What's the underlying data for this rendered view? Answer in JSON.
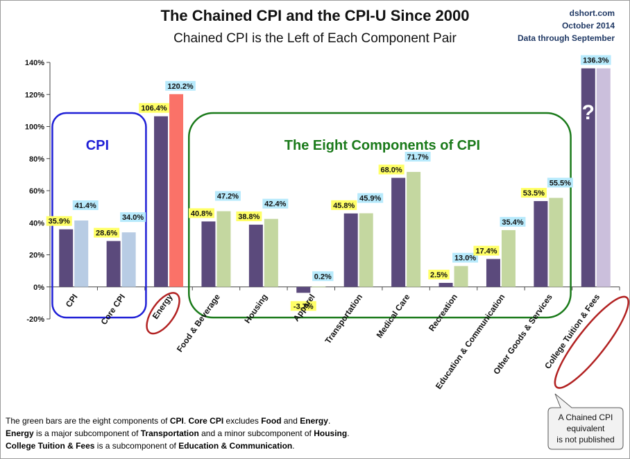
{
  "header": {
    "title": "The Chained CPI and the CPI-U Since 2000",
    "subtitle": "Chained CPI is the Left of Each Component Pair",
    "source_lines": [
      "dshort.com",
      "October 2014",
      "Data through September"
    ]
  },
  "chart_data": {
    "type": "bar",
    "categories": [
      "CPI",
      "Core CPI",
      "Energy",
      "Food & Beverage",
      "Housing",
      "Apparel",
      "Transportation",
      "Medical Care",
      "Recreation",
      "Education & Communication",
      "Other Goods & Services",
      "College Tuition & Fees"
    ],
    "series": [
      {
        "values": [
          35.9,
          28.6,
          106.4,
          40.8,
          38.8,
          -3.7,
          45.8,
          68.0,
          2.5,
          17.4,
          53.5,
          null
        ]
      },
      {
        "values": [
          41.4,
          34.0,
          120.2,
          47.2,
          42.4,
          0.2,
          45.9,
          71.7,
          13.0,
          35.4,
          55.5,
          136.3
        ]
      }
    ],
    "value_labels_left": [
      "35.9%",
      "28.6%",
      "106.4%",
      "40.8%",
      "38.8%",
      "-3.7%",
      "45.8%",
      "68.0%",
      "2.5%",
      "17.4%",
      "53.5%",
      ""
    ],
    "value_labels_right": [
      "41.4%",
      "34.0%",
      "120.2%",
      "47.2%",
      "42.4%",
      "0.2%",
      "45.9%",
      "71.7%",
      "13.0%",
      "35.4%",
      "55.5%",
      "136.3%"
    ],
    "ylim": [
      -20,
      140
    ],
    "yticks": [
      -20,
      0,
      20,
      40,
      60,
      80,
      100,
      120,
      140
    ],
    "ytick_labels": [
      "-20%",
      "0%",
      "20%",
      "40%",
      "60%",
      "80%",
      "100%",
      "120%",
      "140%"
    ],
    "grid": false,
    "colors": {
      "chained_cpi": "#5b4a7c",
      "cpi_u_cpi": "#b8cce4",
      "cpi_u_energy": "#fa7268",
      "cpi_u_components": "#c4d7a0",
      "cpi_u_tuition": "#cbbfdc",
      "label_yellow": "#ffff66",
      "label_blue": "#b7eafc",
      "cpi_box": "#1f1fd6",
      "components_box": "#1a7a1a",
      "circle": "#b22222"
    },
    "annotations": {
      "cpi_box_label": "CPI",
      "components_box_label": "The Eight Components of CPI",
      "question_mark": "?",
      "callout_lines": [
        "A Chained CPI",
        "equivalent",
        "is not published"
      ]
    }
  },
  "footnote": {
    "line1": [
      {
        "t": "The green bars are the eight components of ",
        "b": false
      },
      {
        "t": "CPI",
        "b": true
      },
      {
        "t": ". ",
        "b": false
      },
      {
        "t": "Core CPI",
        "b": true
      },
      {
        "t": " excludes ",
        "b": false
      },
      {
        "t": "Food",
        "b": true
      },
      {
        "t": " and ",
        "b": false
      },
      {
        "t": "Energy",
        "b": true
      },
      {
        "t": ".",
        "b": false
      }
    ],
    "line2": [
      {
        "t": "Energy",
        "b": true
      },
      {
        "t": " is a  major subcomponent of ",
        "b": false
      },
      {
        "t": "Transportation",
        "b": true
      },
      {
        "t": " and a minor subcomponent of ",
        "b": false
      },
      {
        "t": "Housing",
        "b": true
      },
      {
        "t": ".",
        "b": false
      }
    ],
    "line3": [
      {
        "t": "College Tuition & Fees",
        "b": true
      },
      {
        "t": " is a subcomponent of ",
        "b": false
      },
      {
        "t": "Education & Communication",
        "b": true
      },
      {
        "t": ".",
        "b": false
      }
    ]
  }
}
